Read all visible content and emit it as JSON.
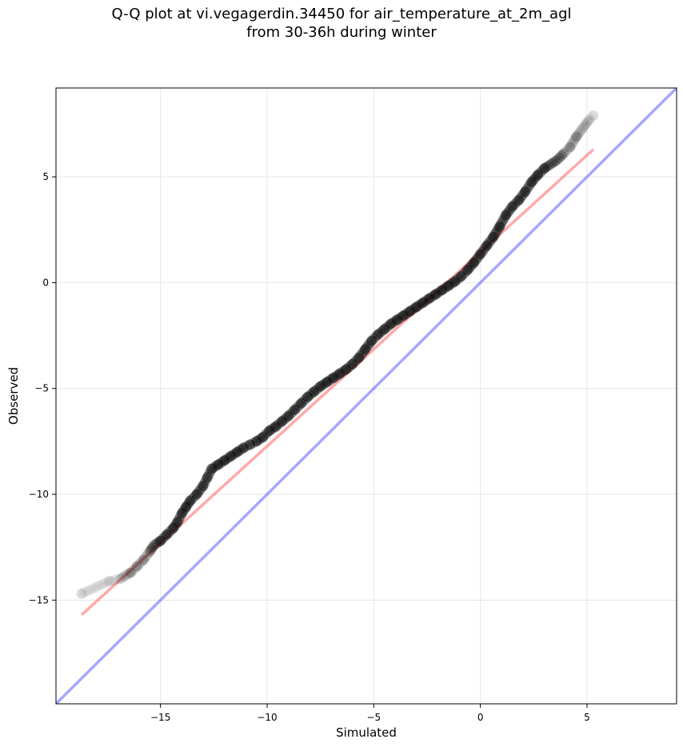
{
  "chart_data": {
    "type": "scatter",
    "title": "Q-Q plot at vi.vegagerdin.34450 for air_temperature_at_2m_agl",
    "subtitle": "from 30-36h during winter",
    "xlabel": "Simulated",
    "ylabel": "Observed",
    "xlim": [
      -19.9,
      9.2
    ],
    "ylim": [
      -19.9,
      9.2
    ],
    "grid": true,
    "xticks": [
      -15,
      -10,
      -5,
      0,
      5
    ],
    "yticks": [
      -15,
      -10,
      -5,
      0,
      5
    ],
    "xtick_labels": [
      "−15",
      "−10",
      "−5",
      "0",
      "5"
    ],
    "ytick_labels": [
      "−15",
      "−10",
      "−5",
      "0",
      "5"
    ],
    "colors": {
      "points": "#000000",
      "fit_line": "#ff4040",
      "identity_line": "#5050ff",
      "grid": "#e6e6e6"
    },
    "series": [
      {
        "type": "scatter",
        "x": [
          -18.7,
          -17.4,
          -16.9,
          -16.4,
          -16.1,
          -15.8,
          -15.5,
          -15.3,
          -15.0,
          -14.7,
          -14.4,
          -14.2,
          -14.0,
          -13.8,
          -13.6,
          -13.3,
          -13.0,
          -12.8,
          -12.6,
          -12.3,
          -12.0,
          -11.7,
          -11.4,
          -11.1,
          -10.8,
          -10.5,
          -10.2,
          -9.9,
          -9.6,
          -9.3,
          -9.0,
          -8.7,
          -8.4,
          -8.1,
          -7.8,
          -7.5,
          -7.2,
          -6.9,
          -6.6,
          -6.3,
          -6.0,
          -5.7,
          -5.4,
          -5.1,
          -4.8,
          -4.5,
          -4.2,
          -3.9,
          -3.6,
          -3.3,
          -3.0,
          -2.7,
          -2.4,
          -2.1,
          -1.8,
          -1.5,
          -1.2,
          -0.9,
          -0.6,
          -0.3,
          0.0,
          0.3,
          0.6,
          0.9,
          1.2,
          1.5,
          1.8,
          2.1,
          2.4,
          2.7,
          3.0,
          3.3,
          3.6,
          3.9,
          4.2,
          4.5,
          4.8,
          5.1,
          5.3
        ],
        "y": [
          -14.7,
          -14.1,
          -14.0,
          -13.7,
          -13.4,
          -13.1,
          -12.7,
          -12.4,
          -12.2,
          -11.9,
          -11.6,
          -11.3,
          -10.9,
          -10.6,
          -10.3,
          -10.0,
          -9.6,
          -9.2,
          -8.8,
          -8.6,
          -8.4,
          -8.2,
          -8.0,
          -7.8,
          -7.65,
          -7.5,
          -7.3,
          -7.0,
          -6.8,
          -6.55,
          -6.3,
          -6.0,
          -5.7,
          -5.4,
          -5.15,
          -4.9,
          -4.7,
          -4.5,
          -4.3,
          -4.1,
          -3.85,
          -3.55,
          -3.15,
          -2.75,
          -2.45,
          -2.2,
          -1.95,
          -1.75,
          -1.55,
          -1.35,
          -1.15,
          -0.95,
          -0.75,
          -0.55,
          -0.35,
          -0.15,
          0.05,
          0.3,
          0.6,
          0.95,
          1.35,
          1.75,
          2.15,
          2.65,
          3.2,
          3.6,
          3.9,
          4.3,
          4.75,
          5.1,
          5.4,
          5.6,
          5.8,
          6.1,
          6.4,
          6.9,
          7.3,
          7.7,
          7.9
        ]
      },
      {
        "type": "line",
        "x": [
          -18.7,
          5.3
        ],
        "y": [
          -15.7,
          6.3
        ]
      },
      {
        "type": "line",
        "x": [
          -19.9,
          9.2
        ],
        "y": [
          -19.9,
          9.2
        ]
      }
    ]
  }
}
